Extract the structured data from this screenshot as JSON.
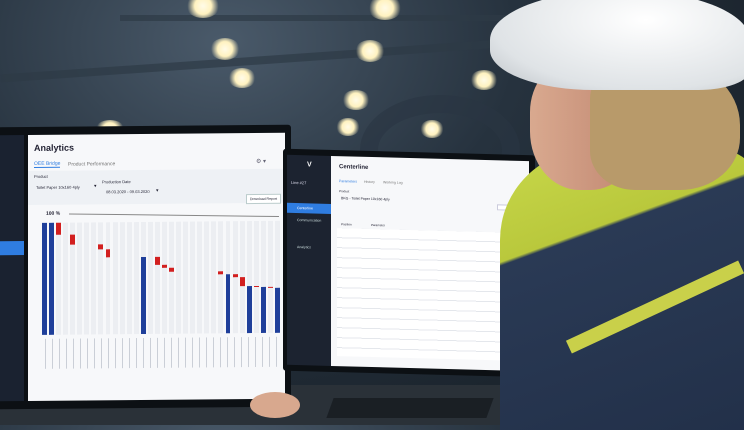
{
  "left_screen": {
    "title": "Analytics",
    "tabs": [
      "OEE Bridge",
      "Product Performance"
    ],
    "product_label": "Product",
    "product_value": "Toilet Paper 10x160 4ply",
    "date_label": "Production Date",
    "date_value": "08.03.2020 - 09.03.2020",
    "download_button": "Download Report",
    "y_top_label": "100 %"
  },
  "right_screen": {
    "title": "Centerline",
    "line_name": "Line #27",
    "nav": [
      "Centerline",
      "Communication",
      "Analytics"
    ],
    "tabs": [
      "Parameters",
      "History",
      "Working Log"
    ],
    "product_label": "Product",
    "product_value": "BKG - Toilet Paper 10x160 4ply",
    "columns": [
      "Position",
      "Parameter"
    ]
  },
  "colors": {
    "total": "#1f3f9a",
    "loss": "#d21f1f",
    "accent": "#2f7de1",
    "sidebar": "#1a2230"
  },
  "chart_data": {
    "type": "bar",
    "subtype": "waterfall",
    "ylim": [
      0,
      100
    ],
    "items": [
      {
        "kind": "total",
        "value": 100
      },
      {
        "kind": "total",
        "value": 100
      },
      {
        "kind": "loss",
        "value": 11
      },
      {
        "kind": "gap"
      },
      {
        "kind": "loss",
        "value": 9
      },
      {
        "kind": "gap"
      },
      {
        "kind": "gap"
      },
      {
        "kind": "gap"
      },
      {
        "kind": "loss",
        "value": 4
      },
      {
        "kind": "loss",
        "value": 7
      },
      {
        "kind": "gap"
      },
      {
        "kind": "gap"
      },
      {
        "kind": "gap"
      },
      {
        "kind": "gap"
      },
      {
        "kind": "total",
        "value": 69
      },
      {
        "kind": "gap"
      },
      {
        "kind": "loss",
        "value": 7
      },
      {
        "kind": "loss",
        "value": 3
      },
      {
        "kind": "loss",
        "value": 4
      },
      {
        "kind": "gap"
      },
      {
        "kind": "gap"
      },
      {
        "kind": "gap"
      },
      {
        "kind": "gap"
      },
      {
        "kind": "gap"
      },
      {
        "kind": "gap"
      },
      {
        "kind": "loss",
        "value": 2
      },
      {
        "kind": "total",
        "value": 53
      },
      {
        "kind": "loss",
        "value": 3
      },
      {
        "kind": "loss",
        "value": 8
      },
      {
        "kind": "total",
        "value": 42
      },
      {
        "kind": "loss",
        "value": 1
      },
      {
        "kind": "total",
        "value": 41
      },
      {
        "kind": "loss",
        "value": 1
      },
      {
        "kind": "total",
        "value": 40
      }
    ]
  }
}
